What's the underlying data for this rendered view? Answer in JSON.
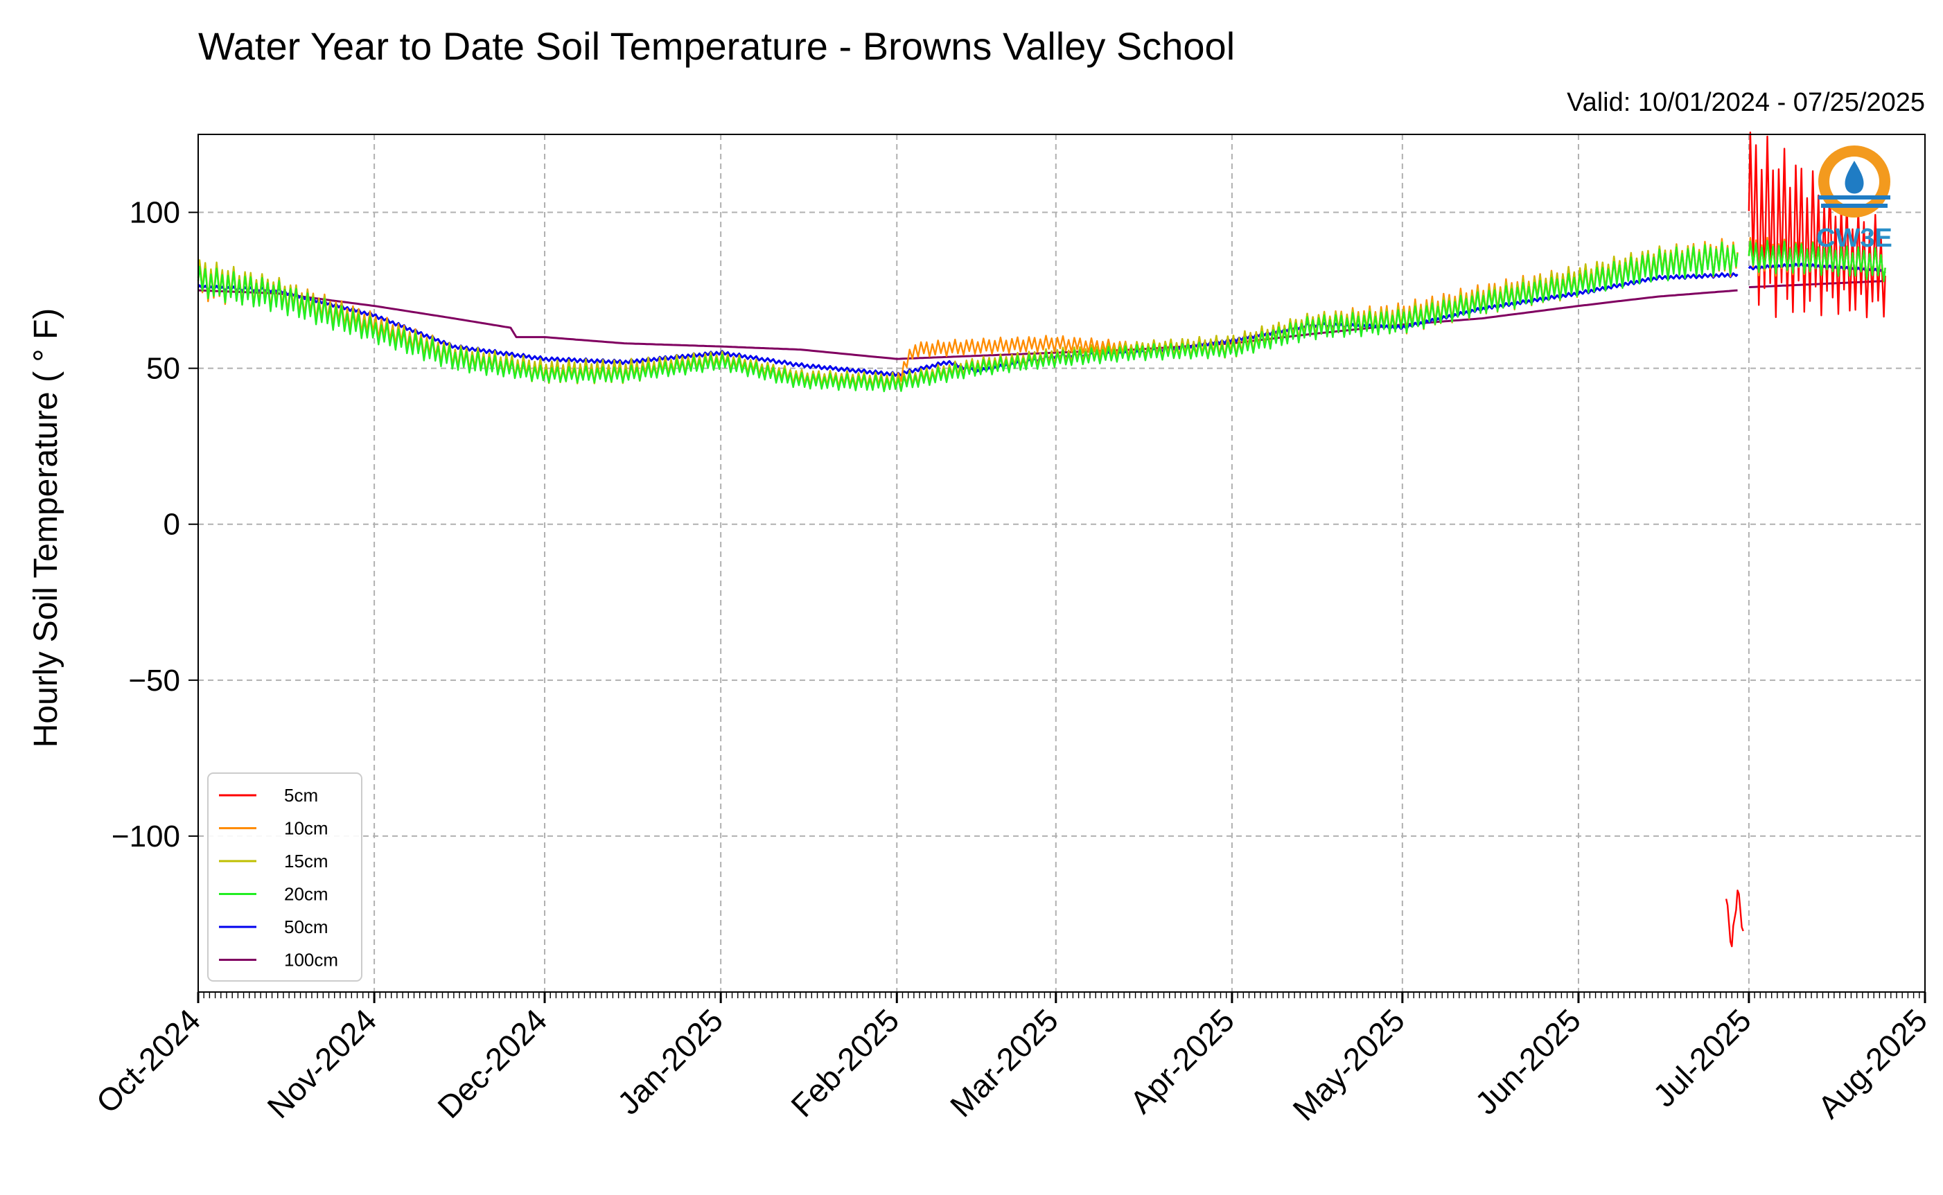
{
  "chart_data": {
    "type": "line",
    "title": "Water Year to Date Soil Temperature - Browns Valley School",
    "subtitle": "Valid: 10/01/2024 - 07/25/2025",
    "ylabel": "Hourly Soil Temperature ( ° F)",
    "xlabel": "",
    "ylim": [
      -150,
      125
    ],
    "yticks": [
      100,
      50,
      0,
      -50,
      -100
    ],
    "ytick_labels": [
      "100",
      "50",
      "0",
      "−50",
      "−100"
    ],
    "x_range": [
      "2024-10-01",
      "2025-08-01"
    ],
    "xticks": [
      "2024-10-01",
      "2024-11-01",
      "2024-12-01",
      "2025-01-01",
      "2025-02-01",
      "2025-03-01",
      "2025-04-01",
      "2025-05-01",
      "2025-06-01",
      "2025-07-01",
      "2025-08-01"
    ],
    "xtick_labels": [
      "Oct-2024",
      "Nov-2024",
      "Dec-2024",
      "Jan-2025",
      "Feb-2025",
      "Mar-2025",
      "Apr-2025",
      "May-2025",
      "Jun-2025",
      "Jul-2025",
      "Aug-2025"
    ],
    "grid": true,
    "legend_position": "lower-left",
    "series": [
      {
        "name": "5cm",
        "color": "#ff0000",
        "x": [
          "2025-06-27",
          "2025-06-28",
          "2025-06-29",
          "2025-06-30",
          "2025-07-01",
          "2025-07-05",
          "2025-07-10",
          "2025-07-15",
          "2025-07-20",
          "2025-07-25"
        ],
        "values": [
          -120,
          -135,
          -118,
          -130,
          100,
          95,
          92,
          88,
          84,
          82
        ],
        "amplitude": [
          2,
          2,
          2,
          2,
          22,
          22,
          20,
          16,
          14,
          12
        ]
      },
      {
        "name": "10cm",
        "color": "#ff8c00",
        "x": [
          "2024-10-01",
          "2024-10-15",
          "2024-11-01",
          "2024-11-15",
          "2024-12-01",
          "2024-12-15",
          "2025-01-01",
          "2025-01-15",
          "2025-02-01",
          "2025-02-04",
          "2025-02-15",
          "2025-03-01",
          "2025-03-15",
          "2025-04-01",
          "2025-04-15",
          "2025-05-01",
          "2025-05-15",
          "2025-06-01",
          "2025-06-15",
          "2025-07-01",
          "2025-07-15",
          "2025-07-25"
        ],
        "values": [
          78,
          74,
          64,
          54,
          49,
          49,
          53,
          47,
          46,
          56,
          57,
          58,
          56,
          57,
          64,
          66,
          72,
          78,
          84,
          86,
          85,
          83
        ],
        "amplitude": [
          5,
          4,
          3,
          3,
          3,
          3,
          2,
          2,
          2,
          2,
          2,
          2,
          2,
          3,
          3,
          4,
          4,
          4,
          4,
          5,
          4,
          4
        ]
      },
      {
        "name": "15cm",
        "color": "#bfbf00",
        "x": [
          "2024-10-01",
          "2024-10-15",
          "2024-11-01",
          "2024-11-15",
          "2024-12-01",
          "2024-12-15",
          "2025-01-01",
          "2025-01-15",
          "2025-02-01",
          "2025-02-15",
          "2025-03-01",
          "2025-03-15",
          "2025-04-01",
          "2025-04-15",
          "2025-05-01",
          "2025-05-15",
          "2025-06-01",
          "2025-06-15",
          "2025-07-01",
          "2025-07-15",
          "2025-07-25"
        ],
        "values": [
          79,
          74,
          63,
          54,
          49,
          49,
          53,
          47,
          46,
          51,
          54,
          56,
          57,
          64,
          66,
          72,
          78,
          84,
          86,
          85,
          83
        ],
        "amplitude": [
          5,
          4,
          3,
          3,
          3,
          3,
          2,
          2,
          2,
          2,
          2,
          2,
          3,
          3,
          3,
          3,
          4,
          4,
          4,
          4,
          4
        ]
      },
      {
        "name": "20cm",
        "color": "#22ee22",
        "x": [
          "2024-10-01",
          "2024-10-15",
          "2024-11-01",
          "2024-11-15",
          "2024-12-01",
          "2024-12-15",
          "2025-01-01",
          "2025-01-15",
          "2025-02-01",
          "2025-02-15",
          "2025-03-01",
          "2025-03-15",
          "2025-04-01",
          "2025-04-15",
          "2025-05-01",
          "2025-05-15",
          "2025-06-01",
          "2025-06-15",
          "2025-07-01",
          "2025-07-15",
          "2025-07-25"
        ],
        "values": [
          78,
          73,
          62,
          53,
          48,
          48,
          52,
          46,
          45,
          50,
          53,
          55,
          56,
          63,
          65,
          71,
          77,
          83,
          86,
          85,
          83
        ],
        "amplitude": [
          4,
          4,
          3,
          3,
          2,
          2,
          2,
          2,
          2,
          2,
          2,
          2,
          2,
          3,
          3,
          3,
          3,
          4,
          4,
          4,
          4
        ]
      },
      {
        "name": "50cm",
        "color": "#0000ee",
        "x": [
          "2024-10-01",
          "2024-10-15",
          "2024-11-01",
          "2024-11-15",
          "2024-12-01",
          "2024-12-15",
          "2025-01-01",
          "2025-01-15",
          "2025-02-01",
          "2025-02-10",
          "2025-02-15",
          "2025-03-01",
          "2025-03-15",
          "2025-04-01",
          "2025-04-15",
          "2025-05-01",
          "2025-05-15",
          "2025-06-01",
          "2025-06-15",
          "2025-06-29",
          "2025-07-01",
          "2025-07-10",
          "2025-07-25"
        ],
        "values": [
          76,
          75,
          67,
          57,
          53,
          52,
          55,
          51,
          48,
          52,
          49,
          54,
          55,
          59,
          64,
          63,
          69,
          74,
          79,
          80,
          82,
          83,
          81
        ],
        "amplitude": [
          0.5,
          0.5,
          0.5,
          0.5,
          0.5,
          0.5,
          0.5,
          0.5,
          0.5,
          0.5,
          0.5,
          0.5,
          0.5,
          0.5,
          0.5,
          0.5,
          0.5,
          0.5,
          0.5,
          0.5,
          0.5,
          0.5,
          0.5
        ]
      },
      {
        "name": "100cm",
        "color": "#800060",
        "x": [
          "2024-10-01",
          "2024-10-15",
          "2024-11-01",
          "2024-11-15",
          "2024-11-25",
          "2024-11-26",
          "2024-12-01",
          "2024-12-15",
          "2025-01-01",
          "2025-01-15",
          "2025-02-01",
          "2025-02-15",
          "2025-03-01",
          "2025-03-15",
          "2025-04-01",
          "2025-04-15",
          "2025-05-01",
          "2025-05-15",
          "2025-06-01",
          "2025-06-15",
          "2025-06-29",
          "2025-07-01",
          "2025-07-25"
        ],
        "values": [
          75,
          74,
          70,
          66,
          63,
          60,
          60,
          58,
          57,
          56,
          53,
          54,
          55,
          56,
          58,
          61,
          64,
          66,
          70,
          73,
          75,
          76,
          78
        ],
        "amplitude": [
          0,
          0,
          0,
          0,
          0,
          0,
          0,
          0,
          0,
          0,
          0,
          0,
          0,
          0,
          0,
          0,
          0,
          0,
          0,
          0,
          0,
          0,
          0
        ]
      }
    ]
  },
  "logo": {
    "text": "CW3E",
    "ring_color": "#f39a1e",
    "drop_color": "#1f7cc4",
    "text_color": "#2a8fc9"
  }
}
